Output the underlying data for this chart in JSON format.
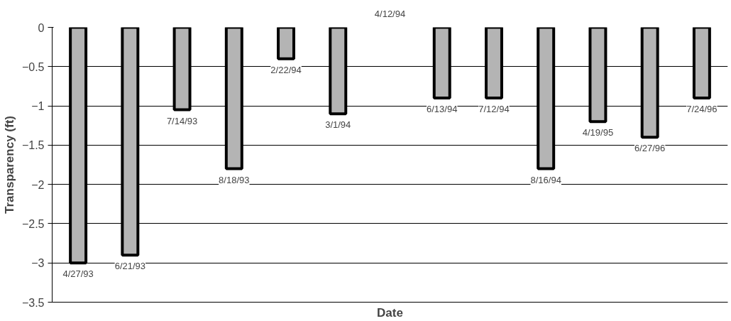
{
  "chart_data": {
    "type": "bar",
    "xlabel": "Date",
    "ylabel": "Transparency (ft)",
    "categories": [
      "4/27/93",
      "6/21/93",
      "7/14/93",
      "8/18/93",
      "2/22/94",
      "3/1/94",
      "4/12/94",
      "6/13/94",
      "7/12/94",
      "8/16/94",
      "4/19/95",
      "6/27/96",
      "7/24/96"
    ],
    "values": [
      -3.0,
      -2.9,
      -1.05,
      -1.8,
      -0.4,
      -1.1,
      0,
      -0.9,
      -0.9,
      -1.8,
      -1.2,
      -1.4,
      -0.9
    ],
    "color": "#b4b4b4",
    "ylim": [
      -3.5,
      0
    ],
    "yticks": [
      0,
      -0.5,
      -1,
      -1.5,
      -2,
      -2.5,
      -3,
      -3.5
    ],
    "grid": "y",
    "tick_labels": "y"
  }
}
